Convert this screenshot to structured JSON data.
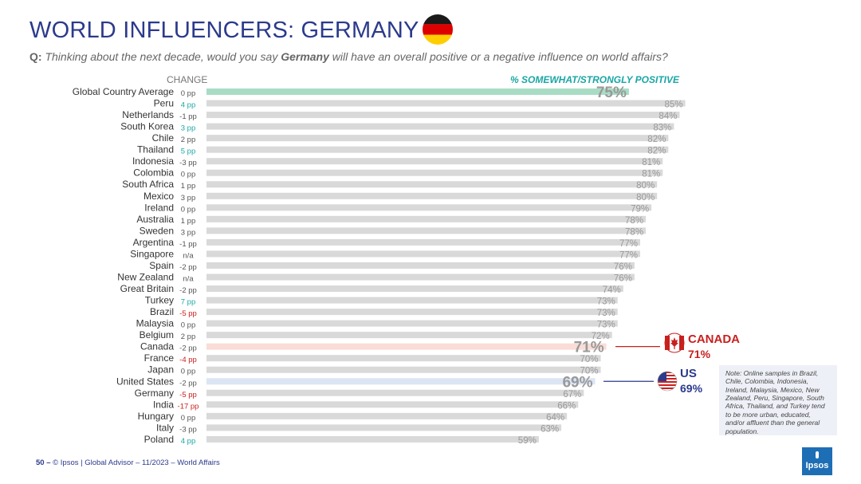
{
  "header": {
    "title": "WORLD INFLUENCERS: GERMANY",
    "question_label": "Q:",
    "question_part1": "Thinking about the next decade, would you say ",
    "question_bold": "Germany",
    "question_part2": " will have an overall positive or a negative influence on world affairs?"
  },
  "columns": {
    "change": "CHANGE",
    "positive": "% SOMEWHAT/STRONGLY POSITIVE"
  },
  "colors": {
    "bar_default": "#d9d9d9",
    "bar_average": "#a8dcc5",
    "bar_canada": "#f9ddd6",
    "bar_us": "#dbe5f4",
    "change_positive": "#1aa6a6",
    "change_negative": "#c8201e",
    "change_neutral": "#555555",
    "canada": "#c8201e",
    "us": "#2b3a8c",
    "title": "#2b3a8c"
  },
  "chart_data": {
    "type": "bar",
    "orientation": "horizontal",
    "xlim": [
      0,
      100
    ],
    "rows": [
      {
        "country": "Global Country Average",
        "change": "0 pp",
        "change_dir": "neutral",
        "value": 75,
        "label": "75%",
        "highlight": "average"
      },
      {
        "country": "Peru",
        "change": "4 pp",
        "change_dir": "up",
        "value": 85,
        "label": "85%"
      },
      {
        "country": "Netherlands",
        "change": "-1 pp",
        "change_dir": "neutral",
        "value": 84,
        "label": "84%"
      },
      {
        "country": "South Korea",
        "change": "3 pp",
        "change_dir": "up",
        "value": 83,
        "label": "83%"
      },
      {
        "country": "Chile",
        "change": "2 pp",
        "change_dir": "neutral",
        "value": 82,
        "label": "82%"
      },
      {
        "country": "Thailand",
        "change": "5 pp",
        "change_dir": "up",
        "value": 82,
        "label": "82%"
      },
      {
        "country": "Indonesia",
        "change": "-3 pp",
        "change_dir": "neutral",
        "value": 81,
        "label": "81%"
      },
      {
        "country": "Colombia",
        "change": "0 pp",
        "change_dir": "neutral",
        "value": 81,
        "label": "81%"
      },
      {
        "country": "South Africa",
        "change": "1 pp",
        "change_dir": "neutral",
        "value": 80,
        "label": "80%"
      },
      {
        "country": "Mexico",
        "change": "3 pp",
        "change_dir": "neutral",
        "value": 80,
        "label": "80%"
      },
      {
        "country": "Ireland",
        "change": "0 pp",
        "change_dir": "neutral",
        "value": 79,
        "label": "79%"
      },
      {
        "country": "Australia",
        "change": "1 pp",
        "change_dir": "neutral",
        "value": 78,
        "label": "78%"
      },
      {
        "country": "Sweden",
        "change": "3 pp",
        "change_dir": "neutral",
        "value": 78,
        "label": "78%"
      },
      {
        "country": "Argentina",
        "change": "-1 pp",
        "change_dir": "neutral",
        "value": 77,
        "label": "77%"
      },
      {
        "country": "Singapore",
        "change": "n/a",
        "change_dir": "neutral",
        "value": 77,
        "label": "77%"
      },
      {
        "country": "Spain",
        "change": "-2 pp",
        "change_dir": "neutral",
        "value": 76,
        "label": "76%"
      },
      {
        "country": "New Zealand",
        "change": "n/a",
        "change_dir": "neutral",
        "value": 76,
        "label": "76%"
      },
      {
        "country": "Great Britain",
        "change": "-2 pp",
        "change_dir": "neutral",
        "value": 74,
        "label": "74%"
      },
      {
        "country": "Turkey",
        "change": "7 pp",
        "change_dir": "up",
        "value": 73,
        "label": "73%"
      },
      {
        "country": "Brazil",
        "change": "-5 pp",
        "change_dir": "down",
        "value": 73,
        "label": "73%"
      },
      {
        "country": "Malaysia",
        "change": "0 pp",
        "change_dir": "neutral",
        "value": 73,
        "label": "73%"
      },
      {
        "country": "Belgium",
        "change": "2 pp",
        "change_dir": "neutral",
        "value": 72,
        "label": "72%"
      },
      {
        "country": "Canada",
        "change": "-2 pp",
        "change_dir": "neutral",
        "value": 71,
        "label": "71%",
        "highlight": "canada"
      },
      {
        "country": "France",
        "change": "-4 pp",
        "change_dir": "down",
        "value": 70,
        "label": "70%"
      },
      {
        "country": "Japan",
        "change": "0 pp",
        "change_dir": "neutral",
        "value": 70,
        "label": "70%"
      },
      {
        "country": "United States",
        "change": "-2 pp",
        "change_dir": "neutral",
        "value": 69,
        "label": "69%",
        "highlight": "us"
      },
      {
        "country": "Germany",
        "change": "-5 pp",
        "change_dir": "down",
        "value": 67,
        "label": "67%"
      },
      {
        "country": "India",
        "change": "-17 pp",
        "change_dir": "down",
        "value": 66,
        "label": "66%"
      },
      {
        "country": "Hungary",
        "change": "0 pp",
        "change_dir": "neutral",
        "value": 64,
        "label": "64%"
      },
      {
        "country": "Italy",
        "change": "-3 pp",
        "change_dir": "neutral",
        "value": 63,
        "label": "63%"
      },
      {
        "country": "Poland",
        "change": "4 pp",
        "change_dir": "up",
        "value": 59,
        "label": "59%"
      }
    ]
  },
  "callouts": {
    "canada_name": "CANADA",
    "canada_value": "71%",
    "us_name": "US",
    "us_value": "69%"
  },
  "note": "Note: Online samples in Brazil, Chile, Colombia, Indonesia, Ireland, Malaysia, Mexico, New Zealand, Peru, Singapore, South Africa, Thailand, and Turkey tend to be more urban, educated, and/or affluent than the general population.",
  "footer": {
    "page": "50 –",
    "text": "© Ipsos | Global Advisor – 11/2023 – World Affairs"
  },
  "logo": {
    "text": "Ipsos"
  }
}
